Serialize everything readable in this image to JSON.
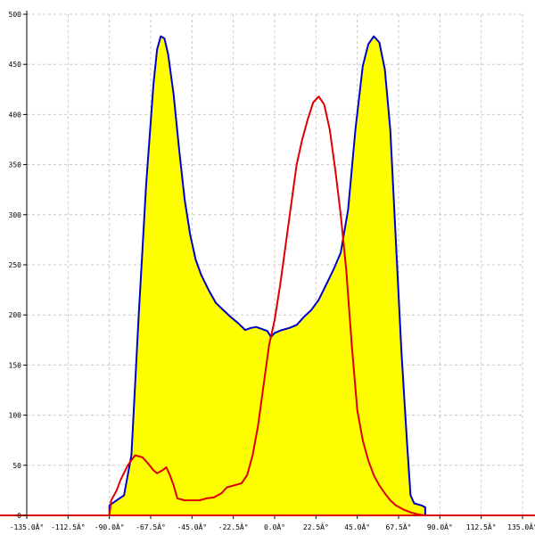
{
  "chart_data": {
    "type": "area",
    "title": "",
    "xlabel": "",
    "ylabel": "",
    "xlim": [
      -135,
      135
    ],
    "ylim": [
      0,
      500
    ],
    "grid": true,
    "x_ticks": [
      {
        "value": -135,
        "label": "-135.0Â°"
      },
      {
        "value": -112.5,
        "label": "-112.5Â°"
      },
      {
        "value": -90,
        "label": "-90.0Â°"
      },
      {
        "value": -67.5,
        "label": "-67.5Â°"
      },
      {
        "value": -45,
        "label": "-45.0Â°"
      },
      {
        "value": -22.5,
        "label": "-22.5Â°"
      },
      {
        "value": 0,
        "label": "0.0Â°"
      },
      {
        "value": 22.5,
        "label": "22.5Â°"
      },
      {
        "value": 45,
        "label": "45.0Â°"
      },
      {
        "value": 67.5,
        "label": "67.5Â°"
      },
      {
        "value": 90,
        "label": "90.0Â°"
      },
      {
        "value": 112.5,
        "label": "112.5Â°"
      },
      {
        "value": 135,
        "label": "135.0Â°"
      }
    ],
    "y_ticks": [
      {
        "value": 0,
        "label": "0"
      },
      {
        "value": 50,
        "label": "50"
      },
      {
        "value": 100,
        "label": "100"
      },
      {
        "value": 150,
        "label": "150"
      },
      {
        "value": 200,
        "label": "200"
      },
      {
        "value": 250,
        "label": "250"
      },
      {
        "value": 300,
        "label": "300"
      },
      {
        "value": 350,
        "label": "350"
      },
      {
        "value": 400,
        "label": "400"
      },
      {
        "value": 450,
        "label": "450"
      },
      {
        "value": 500,
        "label": "500"
      }
    ],
    "series": [
      {
        "color": "#0000cc",
        "fill": "#ffff00",
        "points": [
          [
            -90,
            0
          ],
          [
            -90,
            10
          ],
          [
            -86,
            15
          ],
          [
            -82,
            20
          ],
          [
            -78,
            60
          ],
          [
            -74,
            200
          ],
          [
            -70,
            330
          ],
          [
            -66,
            430
          ],
          [
            -64,
            465
          ],
          [
            -62,
            478
          ],
          [
            -60,
            476
          ],
          [
            -58,
            460
          ],
          [
            -55,
            420
          ],
          [
            -52,
            365
          ],
          [
            -49,
            315
          ],
          [
            -46,
            280
          ],
          [
            -43,
            255
          ],
          [
            -40,
            240
          ],
          [
            -36,
            225
          ],
          [
            -32,
            212
          ],
          [
            -28,
            205
          ],
          [
            -24,
            198
          ],
          [
            -20,
            192
          ],
          [
            -16,
            185
          ],
          [
            -13,
            187
          ],
          [
            -10,
            188
          ],
          [
            -7,
            186
          ],
          [
            -4,
            184
          ],
          [
            -2,
            178
          ],
          [
            0,
            182
          ],
          [
            4,
            185
          ],
          [
            8,
            187
          ],
          [
            12,
            190
          ],
          [
            16,
            198
          ],
          [
            20,
            205
          ],
          [
            24,
            215
          ],
          [
            28,
            230
          ],
          [
            32,
            245
          ],
          [
            36,
            262
          ],
          [
            40,
            305
          ],
          [
            44,
            385
          ],
          [
            48,
            448
          ],
          [
            51,
            470
          ],
          [
            54,
            478
          ],
          [
            57,
            472
          ],
          [
            60,
            445
          ],
          [
            63,
            385
          ],
          [
            66,
            275
          ],
          [
            69,
            165
          ],
          [
            72,
            75
          ],
          [
            74,
            20
          ],
          [
            76,
            12
          ],
          [
            80,
            10
          ],
          [
            82,
            8
          ],
          [
            82,
            0
          ]
        ]
      },
      {
        "color": "#dd0000",
        "fill": "none",
        "points": [
          [
            -135,
            0
          ],
          [
            -90,
            0
          ],
          [
            -89,
            15
          ],
          [
            -86,
            25
          ],
          [
            -84,
            35
          ],
          [
            -80,
            50
          ],
          [
            -76,
            60
          ],
          [
            -72,
            58
          ],
          [
            -69,
            52
          ],
          [
            -66,
            45
          ],
          [
            -64,
            42
          ],
          [
            -61,
            45
          ],
          [
            -59,
            48
          ],
          [
            -57,
            40
          ],
          [
            -55,
            30
          ],
          [
            -53,
            17
          ],
          [
            -49,
            15
          ],
          [
            -45,
            15
          ],
          [
            -41,
            15
          ],
          [
            -37,
            17
          ],
          [
            -33,
            18
          ],
          [
            -29,
            22
          ],
          [
            -26,
            28
          ],
          [
            -22,
            30
          ],
          [
            -18,
            32
          ],
          [
            -15,
            40
          ],
          [
            -12,
            60
          ],
          [
            -9,
            90
          ],
          [
            -6,
            130
          ],
          [
            -3,
            170
          ],
          [
            0,
            195
          ],
          [
            3,
            230
          ],
          [
            6,
            270
          ],
          [
            9,
            310
          ],
          [
            12,
            350
          ],
          [
            15,
            375
          ],
          [
            18,
            395
          ],
          [
            21,
            412
          ],
          [
            24,
            418
          ],
          [
            27,
            410
          ],
          [
            30,
            385
          ],
          [
            33,
            345
          ],
          [
            36,
            300
          ],
          [
            39,
            245
          ],
          [
            42,
            170
          ],
          [
            45,
            105
          ],
          [
            48,
            75
          ],
          [
            51,
            55
          ],
          [
            54,
            40
          ],
          [
            57,
            30
          ],
          [
            60,
            22
          ],
          [
            63,
            15
          ],
          [
            66,
            10
          ],
          [
            70,
            6
          ],
          [
            74,
            3
          ],
          [
            78,
            1
          ],
          [
            82,
            0
          ],
          [
            135,
            0
          ]
        ]
      }
    ]
  }
}
